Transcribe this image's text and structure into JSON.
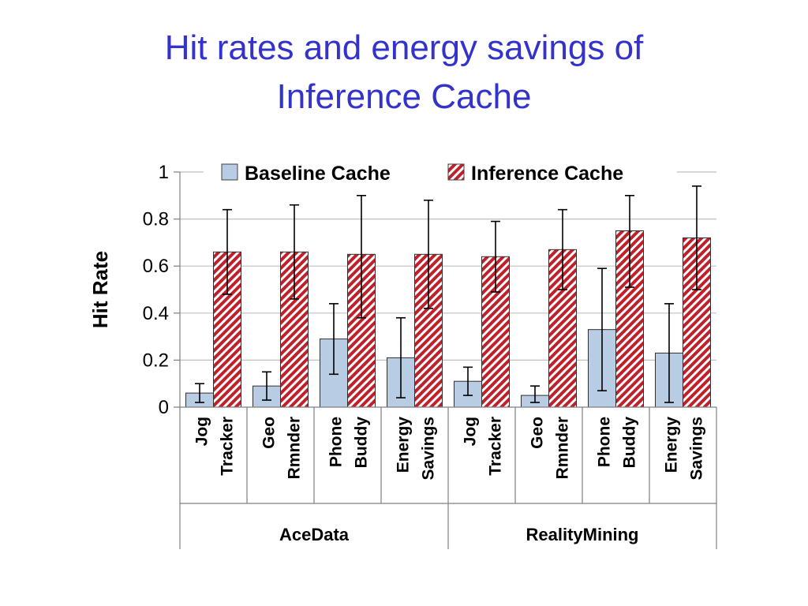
{
  "title_line1": "Hit rates and energy savings of",
  "title_line2": "Inference Cache",
  "colors": {
    "title": "#3333cc",
    "baseline": "#b8cce4",
    "inference_stripe": "#c0202a"
  },
  "chart_data": {
    "type": "bar",
    "ylabel": "Hit Rate",
    "ylim": [
      0,
      1
    ],
    "yticks": [
      "0",
      "0.2",
      "0.4",
      "0.6",
      "0.8",
      "1"
    ],
    "ytick_values": [
      0,
      0.2,
      0.4,
      0.6,
      0.8,
      1
    ],
    "grid": true,
    "legend_position": "top",
    "categories": [
      [
        "Jog",
        "Tracker"
      ],
      [
        "Geo",
        "Rmnder"
      ],
      [
        "Phone",
        "Buddy"
      ],
      [
        "Energy",
        "Savings"
      ],
      [
        "Jog",
        "Tracker"
      ],
      [
        "Geo",
        "Rmnder"
      ],
      [
        "Phone",
        "Buddy"
      ],
      [
        "Energy",
        "Savings"
      ]
    ],
    "groups": [
      {
        "label": "AceData",
        "count": 4
      },
      {
        "label": "RealityMining",
        "count": 4
      }
    ],
    "series": [
      {
        "name": "Baseline Cache",
        "values": [
          0.06,
          0.09,
          0.29,
          0.21,
          0.11,
          0.05,
          0.33,
          0.23
        ],
        "err_low": [
          0.02,
          0.03,
          0.14,
          0.04,
          0.05,
          0.02,
          0.07,
          0.02
        ],
        "err_high": [
          0.1,
          0.15,
          0.44,
          0.38,
          0.17,
          0.09,
          0.59,
          0.44
        ]
      },
      {
        "name": "Inference Cache",
        "values": [
          0.66,
          0.66,
          0.65,
          0.65,
          0.64,
          0.67,
          0.75,
          0.72
        ],
        "err_low": [
          0.48,
          0.46,
          0.38,
          0.42,
          0.49,
          0.5,
          0.51,
          0.5
        ],
        "err_high": [
          0.84,
          0.86,
          0.9,
          0.88,
          0.79,
          0.84,
          0.9,
          0.94
        ]
      }
    ]
  }
}
